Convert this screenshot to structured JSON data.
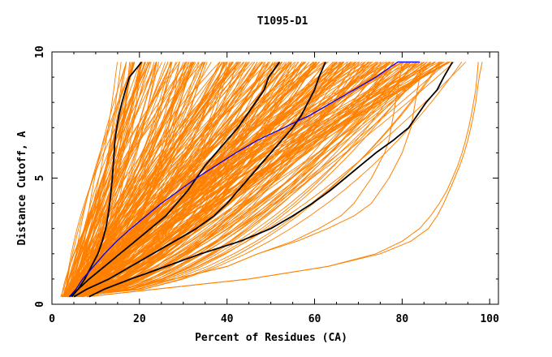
{
  "chart_data": {
    "type": "line",
    "title": "T1095-D1",
    "xlabel": "Percent of Residues (CA)",
    "ylabel": "Distance Cutoff, A",
    "xlim": [
      0,
      102
    ],
    "ylim": [
      0,
      10
    ],
    "y_plot_max": 9.6,
    "x_major_ticks": [
      0,
      20,
      40,
      60,
      80,
      100
    ],
    "y_major_ticks": [
      0,
      5,
      10
    ],
    "grid": false,
    "legend": "none",
    "colors": {
      "models": "#ff8000",
      "highlight": "#000000",
      "reference": "#0000ff",
      "axis": "#000000"
    },
    "y_grid_points": [
      0.3,
      0.6,
      1.0,
      1.5,
      2.0,
      2.5,
      3.0,
      3.5,
      4.0,
      4.5,
      5.0,
      5.5,
      6.0,
      6.5,
      7.0,
      7.5,
      8.0,
      8.5,
      9.0,
      9.6
    ],
    "highlight_series": [
      {
        "x": [
          4.5,
          6,
          7.5,
          9,
          10.5,
          11.5,
          12.3,
          12.8,
          13.2,
          13.5,
          13.8,
          14.0,
          14.2,
          14.4,
          14.8,
          15.3,
          16.0,
          16.8,
          17.7,
          20.5
        ]
      },
      {
        "x": [
          4,
          6,
          8.5,
          12,
          15.5,
          19,
          22.5,
          26,
          28.5,
          31,
          33,
          35,
          37.5,
          40,
          42.5,
          44.5,
          46.5,
          48.5,
          49.5,
          52
        ]
      },
      {
        "x": [
          5,
          8,
          13,
          18,
          23,
          28,
          33,
          37,
          40,
          42.5,
          45,
          47.5,
          50,
          52.5,
          55,
          57,
          58.5,
          60,
          61,
          62.5
        ]
      },
      {
        "x": [
          8.5,
          12,
          18,
          26,
          34,
          43,
          50,
          55,
          59.5,
          63.5,
          67,
          70.5,
          74,
          78,
          81.5,
          83.5,
          85.5,
          88,
          89.5,
          91.5
        ]
      }
    ],
    "reference_series": {
      "name": "",
      "x": [
        4,
        5.5,
        7,
        9.5,
        12,
        14.8,
        18,
        21.5,
        25,
        29,
        33,
        37.5,
        42,
        47,
        53,
        59,
        64,
        69,
        74,
        79,
        84
      ]
    },
    "reference_y": [
      0.3,
      0.6,
      1.0,
      1.5,
      2.0,
      2.5,
      3.0,
      3.5,
      4.0,
      4.5,
      5.0,
      5.5,
      6.0,
      6.5,
      7.0,
      7.5,
      8.0,
      8.5,
      9.0,
      9.6,
      9.6
    ],
    "model_count": 300,
    "model_series": [
      {
        "x": [
          2.0,
          2.7,
          3.3,
          4.0,
          5.0,
          6.1,
          7.5,
          9.0,
          10.0,
          11.0,
          11.8,
          12.4,
          13.0,
          13.5,
          14.0,
          14.6,
          15.2,
          15.7,
          16.1,
          17.0
        ]
      },
      {
        "x": [
          7.0,
          15.0,
          28.0,
          40.0,
          47.0,
          55.0,
          61.0,
          66.0,
          69.0,
          71.0,
          73.0,
          74.5,
          76.0,
          77.0,
          77.5,
          78.0,
          78.5,
          79.0,
          79.5,
          80.0
        ]
      },
      {
        "x": [
          7.0,
          15.0,
          28.0,
          40.0,
          47.0,
          56.0,
          63.0,
          69.0,
          73.0,
          75.0,
          77.0,
          78.5,
          80.0,
          81.0,
          82.0,
          82.5,
          83.0,
          83.5,
          84.0,
          84.5
        ]
      },
      {
        "x": [
          8.0,
          24.0,
          45.0,
          63.0,
          75.0,
          82.0,
          86.0,
          88.0,
          89.5,
          90.8,
          92.0,
          93.2,
          94.2,
          95.0,
          95.7,
          96.3,
          96.8,
          97.2,
          97.6,
          98.3
        ]
      },
      {
        "x": [
          8.0,
          24.0,
          45.0,
          63.0,
          74.0,
          80.0,
          84.0,
          86.5,
          88.5,
          90.2,
          91.5,
          92.7,
          93.7,
          94.5,
          95.2,
          95.8,
          96.3,
          96.8,
          97.1,
          97.4
        ]
      }
    ]
  }
}
